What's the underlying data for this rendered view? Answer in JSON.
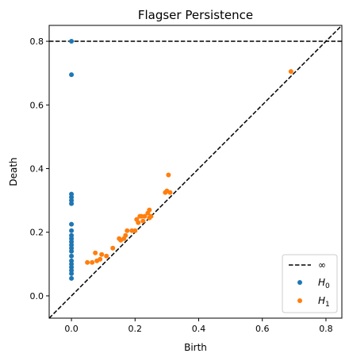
{
  "chart_data": {
    "type": "scatter",
    "title": "Flagser Persistence",
    "xlabel": "Birth",
    "ylabel": "Death",
    "xlim": [
      -0.07,
      0.85
    ],
    "ylim": [
      -0.07,
      0.85
    ],
    "xticks": [
      0.0,
      0.2,
      0.4,
      0.6,
      0.8
    ],
    "yticks": [
      0.0,
      0.2,
      0.4,
      0.6,
      0.8
    ],
    "xtick_labels": [
      "0.0",
      "0.2",
      "0.4",
      "0.6",
      "0.8"
    ],
    "ytick_labels": [
      "0.0",
      "0.2",
      "0.4",
      "0.6",
      "0.8"
    ],
    "infinity_line": {
      "value": 0.8,
      "label": "∞",
      "color": "#000000",
      "style": "dashed"
    },
    "diagonal": {
      "color": "#000000",
      "style": "dashed"
    },
    "legend": {
      "position": "bottom-right"
    },
    "grid": false,
    "series": [
      {
        "name": "H0",
        "color": "#1f77b4",
        "points": [
          [
            0,
            0.8
          ],
          [
            0,
            0.695
          ],
          [
            0,
            0.32
          ],
          [
            0,
            0.31
          ],
          [
            0,
            0.3
          ],
          [
            0,
            0.29
          ],
          [
            0,
            0.225
          ],
          [
            0,
            0.205
          ],
          [
            0,
            0.19
          ],
          [
            0,
            0.18
          ],
          [
            0,
            0.17
          ],
          [
            0,
            0.16
          ],
          [
            0,
            0.15
          ],
          [
            0,
            0.14
          ],
          [
            0,
            0.125
          ],
          [
            0,
            0.11
          ],
          [
            0,
            0.1
          ],
          [
            0,
            0.09
          ],
          [
            0,
            0.08
          ],
          [
            0,
            0.07
          ],
          [
            0,
            0.055
          ]
        ]
      },
      {
        "name": "H1",
        "color": "#ff7f0e",
        "points": [
          [
            0.69,
            0.705
          ],
          [
            0.305,
            0.38
          ],
          [
            0.3,
            0.33
          ],
          [
            0.295,
            0.325
          ],
          [
            0.31,
            0.325
          ],
          [
            0.245,
            0.27
          ],
          [
            0.24,
            0.26
          ],
          [
            0.25,
            0.25
          ],
          [
            0.23,
            0.25
          ],
          [
            0.22,
            0.25
          ],
          [
            0.215,
            0.25
          ],
          [
            0.245,
            0.245
          ],
          [
            0.225,
            0.235
          ],
          [
            0.21,
            0.23
          ],
          [
            0.205,
            0.24
          ],
          [
            0.2,
            0.205
          ],
          [
            0.19,
            0.205
          ],
          [
            0.175,
            0.205
          ],
          [
            0.17,
            0.19
          ],
          [
            0.165,
            0.18
          ],
          [
            0.15,
            0.18
          ],
          [
            0.155,
            0.175
          ],
          [
            0.13,
            0.15
          ],
          [
            0.11,
            0.125
          ],
          [
            0.095,
            0.13
          ],
          [
            0.09,
            0.115
          ],
          [
            0.075,
            0.135
          ],
          [
            0.08,
            0.11
          ],
          [
            0.065,
            0.105
          ],
          [
            0.05,
            0.105
          ]
        ]
      }
    ]
  }
}
